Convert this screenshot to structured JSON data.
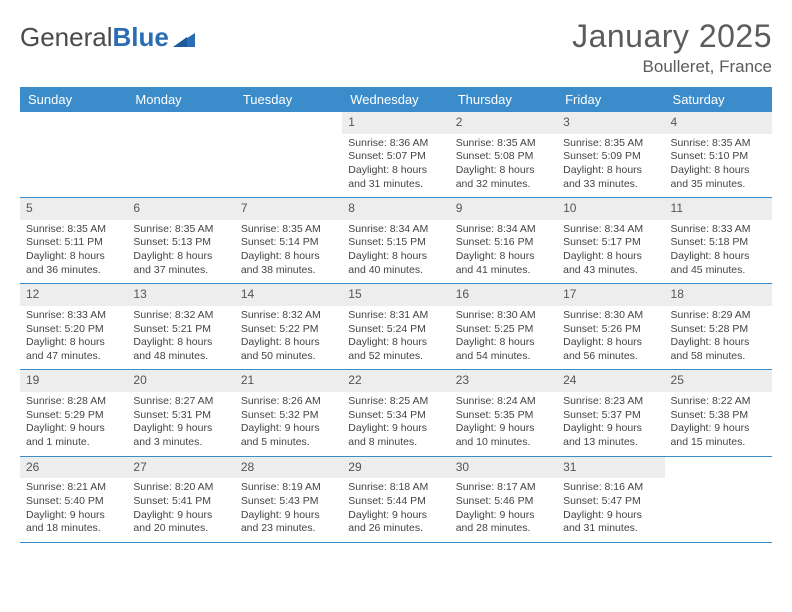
{
  "logo": {
    "text1": "General",
    "text2": "Blue"
  },
  "title": "January 2025",
  "location": "Boulleret, France",
  "colors": {
    "header_bg": "#3b8ccb",
    "header_text": "#ffffff",
    "daynum_bg": "#ededed",
    "daynum_text": "#555555",
    "body_text": "#444444",
    "divider": "#3b8ccb",
    "logo_gray": "#6b6b6b",
    "logo_blue": "#2a6db5",
    "title_color": "#5c5c5c"
  },
  "day_names": [
    "Sunday",
    "Monday",
    "Tuesday",
    "Wednesday",
    "Thursday",
    "Friday",
    "Saturday"
  ],
  "weeks": [
    [
      {
        "n": "",
        "sr": "",
        "ss": "",
        "dl": ""
      },
      {
        "n": "",
        "sr": "",
        "ss": "",
        "dl": ""
      },
      {
        "n": "",
        "sr": "",
        "ss": "",
        "dl": ""
      },
      {
        "n": "1",
        "sr": "Sunrise: 8:36 AM",
        "ss": "Sunset: 5:07 PM",
        "dl": "Daylight: 8 hours and 31 minutes."
      },
      {
        "n": "2",
        "sr": "Sunrise: 8:35 AM",
        "ss": "Sunset: 5:08 PM",
        "dl": "Daylight: 8 hours and 32 minutes."
      },
      {
        "n": "3",
        "sr": "Sunrise: 8:35 AM",
        "ss": "Sunset: 5:09 PM",
        "dl": "Daylight: 8 hours and 33 minutes."
      },
      {
        "n": "4",
        "sr": "Sunrise: 8:35 AM",
        "ss": "Sunset: 5:10 PM",
        "dl": "Daylight: 8 hours and 35 minutes."
      }
    ],
    [
      {
        "n": "5",
        "sr": "Sunrise: 8:35 AM",
        "ss": "Sunset: 5:11 PM",
        "dl": "Daylight: 8 hours and 36 minutes."
      },
      {
        "n": "6",
        "sr": "Sunrise: 8:35 AM",
        "ss": "Sunset: 5:13 PM",
        "dl": "Daylight: 8 hours and 37 minutes."
      },
      {
        "n": "7",
        "sr": "Sunrise: 8:35 AM",
        "ss": "Sunset: 5:14 PM",
        "dl": "Daylight: 8 hours and 38 minutes."
      },
      {
        "n": "8",
        "sr": "Sunrise: 8:34 AM",
        "ss": "Sunset: 5:15 PM",
        "dl": "Daylight: 8 hours and 40 minutes."
      },
      {
        "n": "9",
        "sr": "Sunrise: 8:34 AM",
        "ss": "Sunset: 5:16 PM",
        "dl": "Daylight: 8 hours and 41 minutes."
      },
      {
        "n": "10",
        "sr": "Sunrise: 8:34 AM",
        "ss": "Sunset: 5:17 PM",
        "dl": "Daylight: 8 hours and 43 minutes."
      },
      {
        "n": "11",
        "sr": "Sunrise: 8:33 AM",
        "ss": "Sunset: 5:18 PM",
        "dl": "Daylight: 8 hours and 45 minutes."
      }
    ],
    [
      {
        "n": "12",
        "sr": "Sunrise: 8:33 AM",
        "ss": "Sunset: 5:20 PM",
        "dl": "Daylight: 8 hours and 47 minutes."
      },
      {
        "n": "13",
        "sr": "Sunrise: 8:32 AM",
        "ss": "Sunset: 5:21 PM",
        "dl": "Daylight: 8 hours and 48 minutes."
      },
      {
        "n": "14",
        "sr": "Sunrise: 8:32 AM",
        "ss": "Sunset: 5:22 PM",
        "dl": "Daylight: 8 hours and 50 minutes."
      },
      {
        "n": "15",
        "sr": "Sunrise: 8:31 AM",
        "ss": "Sunset: 5:24 PM",
        "dl": "Daylight: 8 hours and 52 minutes."
      },
      {
        "n": "16",
        "sr": "Sunrise: 8:30 AM",
        "ss": "Sunset: 5:25 PM",
        "dl": "Daylight: 8 hours and 54 minutes."
      },
      {
        "n": "17",
        "sr": "Sunrise: 8:30 AM",
        "ss": "Sunset: 5:26 PM",
        "dl": "Daylight: 8 hours and 56 minutes."
      },
      {
        "n": "18",
        "sr": "Sunrise: 8:29 AM",
        "ss": "Sunset: 5:28 PM",
        "dl": "Daylight: 8 hours and 58 minutes."
      }
    ],
    [
      {
        "n": "19",
        "sr": "Sunrise: 8:28 AM",
        "ss": "Sunset: 5:29 PM",
        "dl": "Daylight: 9 hours and 1 minute."
      },
      {
        "n": "20",
        "sr": "Sunrise: 8:27 AM",
        "ss": "Sunset: 5:31 PM",
        "dl": "Daylight: 9 hours and 3 minutes."
      },
      {
        "n": "21",
        "sr": "Sunrise: 8:26 AM",
        "ss": "Sunset: 5:32 PM",
        "dl": "Daylight: 9 hours and 5 minutes."
      },
      {
        "n": "22",
        "sr": "Sunrise: 8:25 AM",
        "ss": "Sunset: 5:34 PM",
        "dl": "Daylight: 9 hours and 8 minutes."
      },
      {
        "n": "23",
        "sr": "Sunrise: 8:24 AM",
        "ss": "Sunset: 5:35 PM",
        "dl": "Daylight: 9 hours and 10 minutes."
      },
      {
        "n": "24",
        "sr": "Sunrise: 8:23 AM",
        "ss": "Sunset: 5:37 PM",
        "dl": "Daylight: 9 hours and 13 minutes."
      },
      {
        "n": "25",
        "sr": "Sunrise: 8:22 AM",
        "ss": "Sunset: 5:38 PM",
        "dl": "Daylight: 9 hours and 15 minutes."
      }
    ],
    [
      {
        "n": "26",
        "sr": "Sunrise: 8:21 AM",
        "ss": "Sunset: 5:40 PM",
        "dl": "Daylight: 9 hours and 18 minutes."
      },
      {
        "n": "27",
        "sr": "Sunrise: 8:20 AM",
        "ss": "Sunset: 5:41 PM",
        "dl": "Daylight: 9 hours and 20 minutes."
      },
      {
        "n": "28",
        "sr": "Sunrise: 8:19 AM",
        "ss": "Sunset: 5:43 PM",
        "dl": "Daylight: 9 hours and 23 minutes."
      },
      {
        "n": "29",
        "sr": "Sunrise: 8:18 AM",
        "ss": "Sunset: 5:44 PM",
        "dl": "Daylight: 9 hours and 26 minutes."
      },
      {
        "n": "30",
        "sr": "Sunrise: 8:17 AM",
        "ss": "Sunset: 5:46 PM",
        "dl": "Daylight: 9 hours and 28 minutes."
      },
      {
        "n": "31",
        "sr": "Sunrise: 8:16 AM",
        "ss": "Sunset: 5:47 PM",
        "dl": "Daylight: 9 hours and 31 minutes."
      },
      {
        "n": "",
        "sr": "",
        "ss": "",
        "dl": ""
      }
    ]
  ]
}
